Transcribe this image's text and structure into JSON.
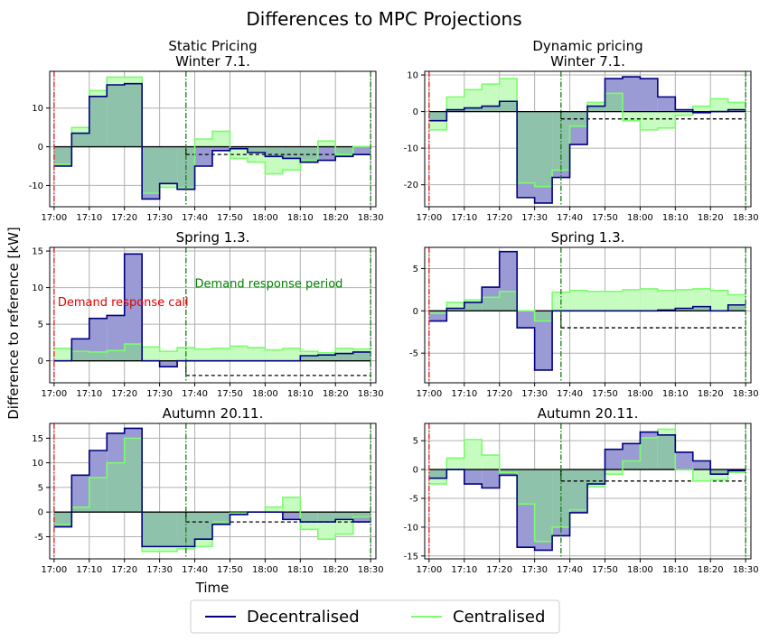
{
  "figure": {
    "title": "Differences to MPC Projections",
    "ylabel": "Difference to reference [kW]",
    "xlabel": "Time",
    "legend": [
      {
        "name": "Decentralised",
        "color": "#000080"
      },
      {
        "name": "Centralised",
        "color": "#7cfc6e"
      }
    ],
    "annotation_call": "Demand response call",
    "annotation_period": "Demand response period"
  },
  "colors": {
    "decentralised": "#000080",
    "centralised": "#7cfc6e",
    "fill_decentralised": "#9a9ad4",
    "fill_centralised": "#c6fcc0",
    "fill_overlap": "#8fc2ab",
    "call_line": "#e41a1c",
    "period_line": "#1a7a1a",
    "annotation_call": "#e00000",
    "annotation_period": "#008000",
    "grid": "#b0b0b0"
  },
  "chart_data": [
    {
      "type": "line",
      "title": "Static Pricing\nWinter 7.1.",
      "x": [
        "17:00",
        "17:05",
        "17:10",
        "17:15",
        "17:20",
        "17:25",
        "17:30",
        "17:35",
        "17:40",
        "17:45",
        "17:50",
        "17:55",
        "18:00",
        "18:05",
        "18:10",
        "18:15",
        "18:20",
        "18:25"
      ],
      "x_ticks": [
        "17:00",
        "17:10",
        "17:20",
        "17:30",
        "17:40",
        "17:50",
        "18:00",
        "18:10",
        "18:20",
        "18:30"
      ],
      "ylim": [
        -15.5,
        19.5
      ],
      "y_ticks": [
        -10,
        0,
        10
      ],
      "reference_dashed": [
        [
          7.5,
          -2
        ],
        [
          18,
          -2
        ]
      ],
      "series": [
        {
          "name": "Decentralised",
          "values": [
            -5,
            3.5,
            13,
            16,
            16.3,
            -13.5,
            -9.5,
            -11,
            -5,
            -1,
            -0.5,
            -1.5,
            -2.5,
            -3,
            -4,
            -3.5,
            -2.5,
            -2
          ]
        },
        {
          "name": "Centralised",
          "values": [
            -4.5,
            5,
            14.5,
            18,
            18,
            -12,
            -10.5,
            -10.5,
            2,
            4,
            -3,
            -4,
            -7,
            -6,
            -3.5,
            1.5,
            -2,
            0
          ]
        }
      ]
    },
    {
      "type": "line",
      "title": "Dynamic pricing\nWinter 7.1.",
      "x": [
        "17:00",
        "17:05",
        "17:10",
        "17:15",
        "17:20",
        "17:25",
        "17:30",
        "17:35",
        "17:40",
        "17:45",
        "17:50",
        "17:55",
        "18:00",
        "18:05",
        "18:10",
        "18:15",
        "18:20",
        "18:25"
      ],
      "x_ticks": [
        "17:00",
        "17:10",
        "17:20",
        "17:30",
        "17:40",
        "17:50",
        "18:00",
        "18:10",
        "18:20",
        "18:30"
      ],
      "ylim": [
        -26,
        11
      ],
      "y_ticks": [
        -20,
        -10,
        0,
        10
      ],
      "reference_dashed": [
        [
          7.5,
          -2
        ],
        [
          18,
          -2
        ]
      ],
      "series": [
        {
          "name": "Decentralised",
          "values": [
            -2.5,
            0.5,
            1,
            1.5,
            2.8,
            -23.5,
            -25,
            -18,
            -9,
            1.5,
            9,
            9.5,
            9,
            4,
            0.5,
            -0.3,
            0,
            0.5
          ]
        },
        {
          "name": "Centralised",
          "values": [
            -5,
            4,
            6,
            7.5,
            9,
            -19.5,
            -20.5,
            -16,
            -4,
            2.5,
            5,
            -2.5,
            -5,
            -4.5,
            -1,
            1.5,
            3.5,
            2.5
          ]
        }
      ]
    },
    {
      "type": "line",
      "title": "Spring 1.3.",
      "x": [
        "17:00",
        "17:05",
        "17:10",
        "17:15",
        "17:20",
        "17:25",
        "17:30",
        "17:35",
        "17:40",
        "17:45",
        "17:50",
        "17:55",
        "18:00",
        "18:05",
        "18:10",
        "18:15",
        "18:20",
        "18:25"
      ],
      "x_ticks": [
        "17:00",
        "17:10",
        "17:20",
        "17:30",
        "17:40",
        "17:50",
        "18:00",
        "18:10",
        "18:20",
        "18:30"
      ],
      "ylim": [
        -3,
        15.5
      ],
      "y_ticks": [
        0,
        5,
        10,
        15
      ],
      "reference_dashed": [
        [
          7.5,
          -2
        ],
        [
          18,
          -2
        ]
      ],
      "series": [
        {
          "name": "Decentralised",
          "values": [
            0,
            3,
            5.8,
            6.2,
            14.6,
            0,
            -0.8,
            0,
            0,
            0,
            0,
            0,
            0,
            0,
            0.7,
            0.8,
            1,
            1.2
          ]
        },
        {
          "name": "Centralised",
          "values": [
            1.7,
            1.3,
            1.2,
            1.4,
            2.3,
            1.9,
            1.3,
            1.8,
            1.6,
            1.7,
            2,
            1.8,
            1.5,
            1.7,
            1.3,
            1.1,
            1.7,
            1.6
          ]
        }
      ]
    },
    {
      "type": "line",
      "title": "Spring 1.3.",
      "x": [
        "17:00",
        "17:05",
        "17:10",
        "17:15",
        "17:20",
        "17:25",
        "17:30",
        "17:35",
        "17:40",
        "17:45",
        "17:50",
        "17:55",
        "18:00",
        "18:05",
        "18:10",
        "18:15",
        "18:20",
        "18:25"
      ],
      "x_ticks": [
        "17:00",
        "17:10",
        "17:20",
        "17:30",
        "17:40",
        "17:50",
        "18:00",
        "18:10",
        "18:20",
        "18:30"
      ],
      "ylim": [
        -8.5,
        7.5
      ],
      "y_ticks": [
        -5,
        0,
        5
      ],
      "reference_dashed": [
        [
          7.5,
          -2
        ],
        [
          18,
          -2
        ]
      ],
      "series": [
        {
          "name": "Decentralised",
          "values": [
            -1.2,
            0.3,
            1,
            2.8,
            7,
            -2,
            -7,
            0,
            0,
            0,
            0,
            0,
            0,
            0.1,
            0.3,
            0.5,
            0,
            0.7
          ]
        },
        {
          "name": "Centralised",
          "values": [
            -0.3,
            1,
            1.3,
            1.6,
            2.3,
            0,
            -1.2,
            2.2,
            2.4,
            2.3,
            2.3,
            2.5,
            2.6,
            2.4,
            2.5,
            2.6,
            2.4,
            1.9
          ]
        }
      ]
    },
    {
      "type": "line",
      "title": "Autumn 20.11.",
      "x": [
        "17:00",
        "17:05",
        "17:10",
        "17:15",
        "17:20",
        "17:25",
        "17:30",
        "17:35",
        "17:40",
        "17:45",
        "17:50",
        "17:55",
        "18:00",
        "18:05",
        "18:10",
        "18:15",
        "18:20",
        "18:25"
      ],
      "x_ticks": [
        "17:00",
        "17:10",
        "17:20",
        "17:30",
        "17:40",
        "17:50",
        "18:00",
        "18:10",
        "18:20",
        "18:30"
      ],
      "ylim": [
        -9.5,
        18
      ],
      "y_ticks": [
        -5,
        0,
        5,
        10,
        15
      ],
      "reference_dashed": [
        [
          7.5,
          -2
        ],
        [
          18,
          -2
        ]
      ],
      "series": [
        {
          "name": "Decentralised",
          "values": [
            -3,
            7.5,
            12.5,
            16,
            17,
            -7,
            -7,
            -7,
            -5.5,
            -2.5,
            -0.5,
            0,
            0,
            -1.5,
            -2,
            -2,
            -1.5,
            -2
          ]
        },
        {
          "name": "Centralised",
          "values": [
            -2.5,
            1,
            7,
            10,
            15,
            -8,
            -8,
            -7.5,
            -7,
            -2,
            -0.2,
            0,
            1,
            3,
            -3.5,
            -5.5,
            -4.5,
            -1
          ]
        }
      ]
    },
    {
      "type": "line",
      "title": "Autumn 20.11.",
      "x": [
        "17:00",
        "17:05",
        "17:10",
        "17:15",
        "17:20",
        "17:25",
        "17:30",
        "17:35",
        "17:40",
        "17:45",
        "17:50",
        "17:55",
        "18:00",
        "18:05",
        "18:10",
        "18:15",
        "18:20",
        "18:25"
      ],
      "x_ticks": [
        "17:00",
        "17:10",
        "17:20",
        "17:30",
        "17:40",
        "17:50",
        "18:00",
        "18:10",
        "18:20",
        "18:30"
      ],
      "ylim": [
        -15.5,
        8
      ],
      "y_ticks": [
        -15,
        -10,
        -5,
        0,
        5
      ],
      "reference_dashed": [
        [
          7.5,
          -2
        ],
        [
          18,
          -2
        ]
      ],
      "series": [
        {
          "name": "Decentralised",
          "values": [
            -1.5,
            0,
            -2.5,
            -3.2,
            -1,
            -13.5,
            -14,
            -11.5,
            -7.5,
            -2.5,
            3.5,
            4.5,
            6.5,
            6,
            3,
            1.5,
            -0.8,
            -0.2
          ]
        },
        {
          "name": "Centralised",
          "values": [
            -2.5,
            2,
            5.2,
            2.5,
            -0.5,
            -6,
            -12.5,
            -10,
            -7,
            -3,
            -0.8,
            1.5,
            5.5,
            7,
            0,
            -2,
            -1.8,
            -0.5
          ]
        }
      ]
    }
  ]
}
